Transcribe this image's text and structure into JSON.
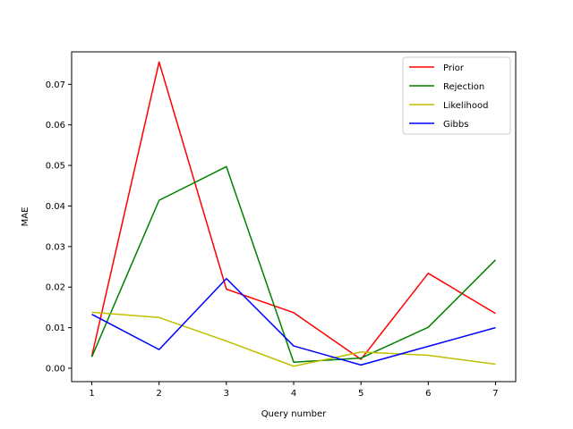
{
  "chart_data": {
    "type": "line",
    "xlabel": "Query number",
    "ylabel": "MAE",
    "x": [
      1,
      2,
      3,
      4,
      5,
      6,
      7
    ],
    "xlim": [
      0.7,
      7.3
    ],
    "ylim": [
      -0.0033,
      0.078
    ],
    "xticks": [
      "1",
      "2",
      "3",
      "4",
      "5",
      "6",
      "7"
    ],
    "yticks": [
      "0.00",
      "0.01",
      "0.02",
      "0.03",
      "0.04",
      "0.05",
      "0.06",
      "0.07"
    ],
    "ytick_values": [
      0.0,
      0.01,
      0.02,
      0.03,
      0.04,
      0.05,
      0.06,
      0.07
    ],
    "grid": false,
    "legend_position": "top-right",
    "series": [
      {
        "name": "Prior",
        "color": "#ff0000",
        "values": [
          0.003,
          0.0755,
          0.0195,
          0.0137,
          0.0022,
          0.0234,
          0.0135
        ]
      },
      {
        "name": "Rejection",
        "color": "#008000",
        "values": [
          0.0028,
          0.0414,
          0.0497,
          0.0015,
          0.0025,
          0.0101,
          0.0267
        ]
      },
      {
        "name": "Likelihood",
        "color": "#bfbf00",
        "values": [
          0.0138,
          0.0125,
          0.0067,
          0.0005,
          0.004,
          0.0032,
          0.001
        ]
      },
      {
        "name": "Gibbs",
        "color": "#0000ff",
        "values": [
          0.0133,
          0.0046,
          0.0221,
          0.0055,
          0.0008,
          0.0054,
          0.01
        ]
      }
    ]
  }
}
